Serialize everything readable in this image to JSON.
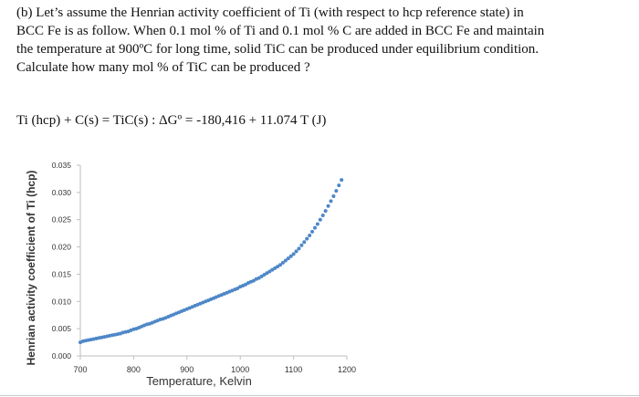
{
  "problem": {
    "lines": [
      "(b) Let’s assume the Henrian activity coefficient of Ti (with respect to hcp reference state) in",
      "BCC Fe is as follow.  When 0.1 mol % of Ti and 0.1 mol % C are added in BCC Fe and maintain",
      "the temperature at 900ºC for long time, solid TiC can be produced under equilibrium condition.",
      "Calculate how many mol % of TiC can be produced ?"
    ],
    "equation": "Ti (hcp) + C(s) = TiC(s) : ΔGº = -180,416 + 11.074 T  (J)"
  },
  "colors": {
    "points": "#4e87c7",
    "axis": "#bfbfbf"
  },
  "chart_data": {
    "type": "scatter",
    "xlabel": "Temperature, Kelvin",
    "ylabel": "Henrian activity coefficient of Ti (hcp)",
    "xlim": [
      700,
      1200
    ],
    "ylim": [
      0,
      0.035
    ],
    "xticks": [
      "700",
      "800",
      "900",
      "1000",
      "1100",
      "1200"
    ],
    "yticks": [
      "0.000",
      "0.005",
      "0.010",
      "0.015",
      "0.020",
      "0.025",
      "0.030",
      "0.035"
    ],
    "x_start": 700,
    "x_end": 1193,
    "x_step": 5,
    "marker_size": 4,
    "y_values": [
      0.0025,
      0.0027,
      0.0028,
      0.0029,
      0.003,
      0.0031,
      0.0032,
      0.0033,
      0.0034,
      0.0035,
      0.0036,
      0.0037,
      0.0038,
      0.0039,
      0.004,
      0.0041,
      0.0043,
      0.0044,
      0.0045,
      0.0047,
      0.0049,
      0.005,
      0.0052,
      0.0054,
      0.0056,
      0.0058,
      0.0059,
      0.0061,
      0.0063,
      0.0065,
      0.0067,
      0.0068,
      0.007,
      0.0072,
      0.0074,
      0.0076,
      0.0078,
      0.008,
      0.0082,
      0.0084,
      0.0086,
      0.0088,
      0.009,
      0.0092,
      0.0094,
      0.0096,
      0.0098,
      0.01,
      0.0102,
      0.0104,
      0.0106,
      0.0108,
      0.011,
      0.0112,
      0.0114,
      0.0116,
      0.0118,
      0.012,
      0.0122,
      0.0124,
      0.0127,
      0.0129,
      0.0131,
      0.0134,
      0.0136,
      0.0138,
      0.0141,
      0.0143,
      0.0146,
      0.0149,
      0.0152,
      0.0155,
      0.0158,
      0.0161,
      0.0164,
      0.0167,
      0.0171,
      0.0175,
      0.0179,
      0.0183,
      0.0187,
      0.0192,
      0.0197,
      0.0203,
      0.0209,
      0.0215,
      0.0221,
      0.0228,
      0.0235,
      0.0242,
      0.025,
      0.0258,
      0.0266,
      0.0275,
      0.0284,
      0.0293,
      0.0303,
      0.0313,
      0.0323
    ]
  }
}
